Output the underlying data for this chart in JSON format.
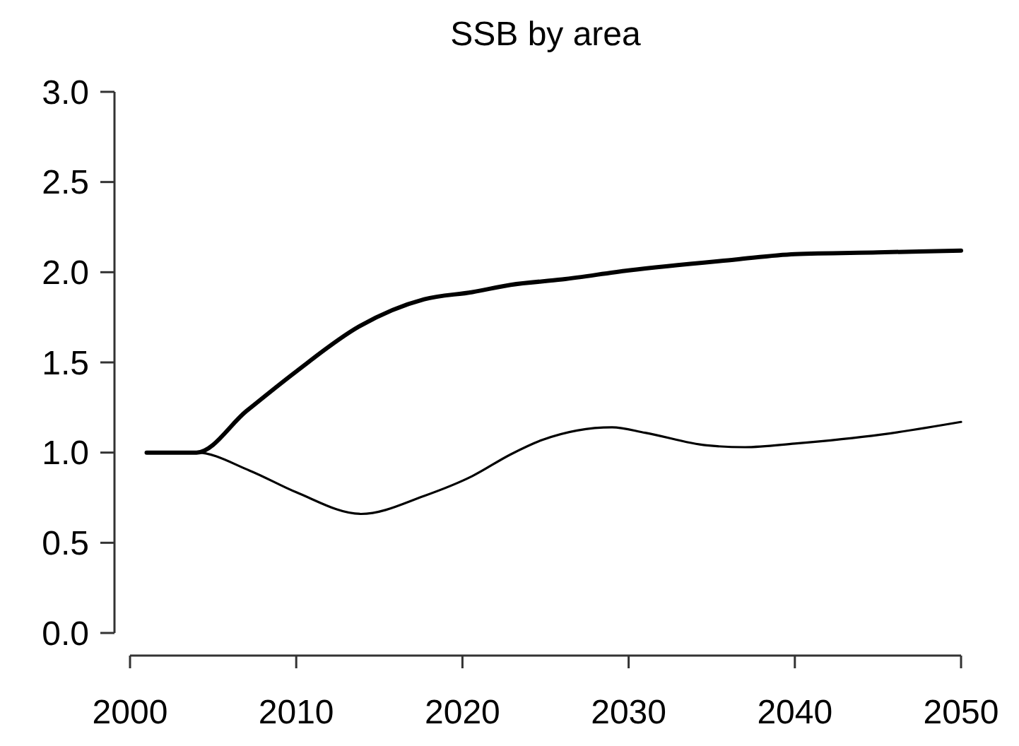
{
  "chart_data": {
    "type": "line",
    "title": "SSB by area",
    "xlim": [
      2000,
      2050
    ],
    "xticks": [
      2000,
      2010,
      2020,
      2030,
      2040,
      2050
    ],
    "ylim": [
      0,
      3
    ],
    "yticks": [
      {
        "value": 0,
        "label": "0.0"
      },
      {
        "value": 0.5,
        "label": "0.5"
      },
      {
        "value": 1,
        "label": "1.0"
      },
      {
        "value": 1.5,
        "label": "1.5"
      },
      {
        "value": 2,
        "label": "2.0"
      },
      {
        "value": 2.5,
        "label": "2.5"
      },
      {
        "value": 3,
        "label": "3.0"
      }
    ],
    "marker": "none",
    "line_style": "solid",
    "series": [
      {
        "color": "#000000",
        "x": [
          2001,
          2004,
          2007,
          2010,
          2013.8,
          2017.7,
          2020.6,
          2022.9,
          2026,
          2030,
          2036.4,
          2040,
          2045,
          2050
        ],
        "values": [
          1.0,
          1.0,
          1.23,
          1.45,
          1.7,
          1.85,
          1.89,
          1.93,
          1.96,
          2.01,
          2.07,
          2.1,
          2.11,
          2.12
        ]
      },
      {
        "color": "#000000",
        "x": [
          2001,
          2004,
          2007.2,
          2010,
          2013.9,
          2017.7,
          2020.6,
          2022.9,
          2024.8,
          2029,
          2031,
          2034.7,
          2037,
          2040,
          2045.2,
          2050
        ],
        "values": [
          1.0,
          1.0,
          0.9,
          0.78,
          0.66,
          0.76,
          0.87,
          0.99,
          1.07,
          1.14,
          1.11,
          1.04,
          1.03,
          1.05,
          1.1,
          1.17
        ]
      }
    ]
  }
}
